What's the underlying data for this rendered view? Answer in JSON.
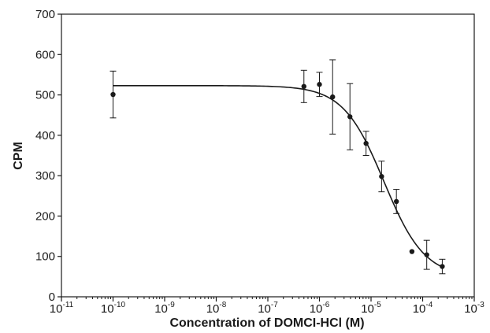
{
  "chart_data": {
    "type": "scatter",
    "xlabel": "Concentration of DOMCI-HCl (M)",
    "ylabel": "CPM",
    "x_scale": "log",
    "xlim": [
      1e-11,
      0.001
    ],
    "ylim": [
      0,
      700
    ],
    "x_tick_exponents": [
      "-11",
      "-10",
      "-9",
      "-8",
      "-7",
      "-6",
      "-5",
      "-4",
      "-3"
    ],
    "y_ticks": [
      "0",
      "100",
      "200",
      "300",
      "400",
      "500",
      "600",
      "700"
    ],
    "grid": false,
    "legend": "none",
    "colors": {
      "marker": "#1a1a1a",
      "line": "#1a1a1a",
      "axis": "#1a1a1a"
    },
    "series": [
      {
        "type": "scatter_errorbars",
        "points": [
          {
            "x": 1e-10,
            "y": 501,
            "err": 58
          },
          {
            "x": 5e-07,
            "y": 521,
            "err": 40
          },
          {
            "x": 1e-06,
            "y": 526,
            "err": 30
          },
          {
            "x": 1.8e-06,
            "y": 495,
            "err": 92
          },
          {
            "x": 3.9e-06,
            "y": 446,
            "err": 82
          },
          {
            "x": 8e-06,
            "y": 380,
            "err": 30
          },
          {
            "x": 1.6e-05,
            "y": 298,
            "err": 38
          },
          {
            "x": 3.1e-05,
            "y": 236,
            "err": 30
          },
          {
            "x": 6.2e-05,
            "y": 112,
            "err": 0
          },
          {
            "x": 0.00012,
            "y": 104,
            "err": 36
          },
          {
            "x": 0.00024,
            "y": 75,
            "err": 18
          }
        ]
      },
      {
        "type": "fit_curve",
        "top": 523,
        "bottom": 48,
        "log_ic50": -4.75,
        "hill_slope": 1.1,
        "x_range": [
          1e-10,
          0.00025
        ]
      }
    ]
  }
}
